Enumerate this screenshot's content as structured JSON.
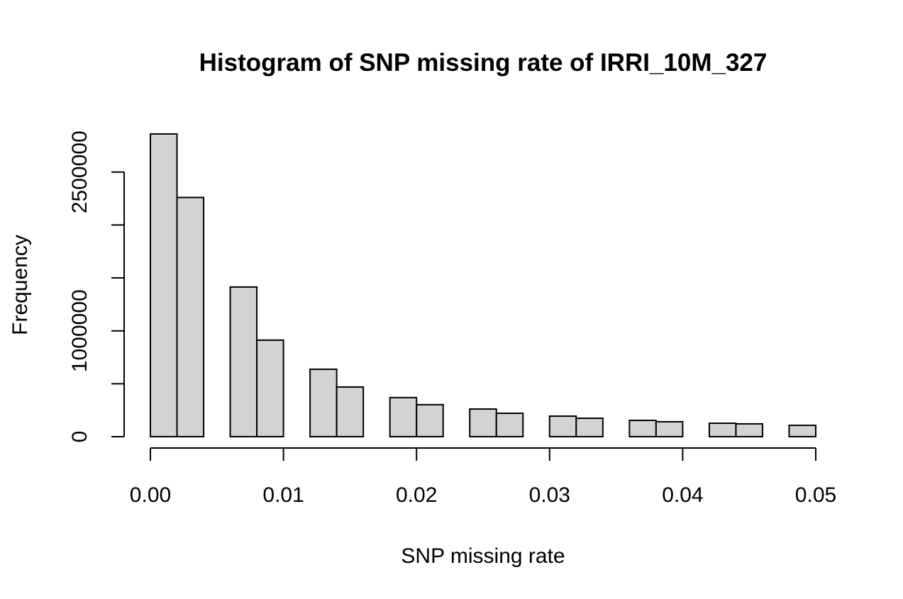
{
  "chart_data": {
    "type": "histogram",
    "title": "Histogram of SNP missing rate of IRRI_10M_327",
    "x_label": "SNP missing rate",
    "y_label": "Frequency",
    "bins": [
      0,
      0.002,
      0.004,
      0.006,
      0.008,
      0.01,
      0.012,
      0.014,
      0.016,
      0.018,
      0.02,
      0.022,
      0.024,
      0.026,
      0.028,
      0.03,
      0.032,
      0.034,
      0.036,
      0.038,
      0.04,
      0.042,
      0.044,
      0.046,
      0.048,
      0.05
    ],
    "values": [
      2860000,
      2260000,
      0,
      1414000,
      912000,
      0,
      637000,
      469000,
      0,
      369000,
      302000,
      0,
      261000,
      221000,
      0,
      194000,
      174000,
      0,
      154000,
      141000,
      0,
      127000,
      121000,
      0,
      107000
    ],
    "color": "#d3d3d3",
    "xlim": [
      0,
      0.05
    ],
    "xticks": [
      {
        "value": 0,
        "label": "0.00"
      },
      0.01,
      0.02,
      0.03,
      0.04,
      0.05
    ],
    "ylim": [
      0,
      2900000
    ],
    "yticks": [
      0,
      {
        "value": 500000,
        "label": null
      },
      1000000,
      {
        "value": 1500000,
        "label": null
      },
      {
        "value": 2000000,
        "label": null
      },
      2500000
    ]
  }
}
